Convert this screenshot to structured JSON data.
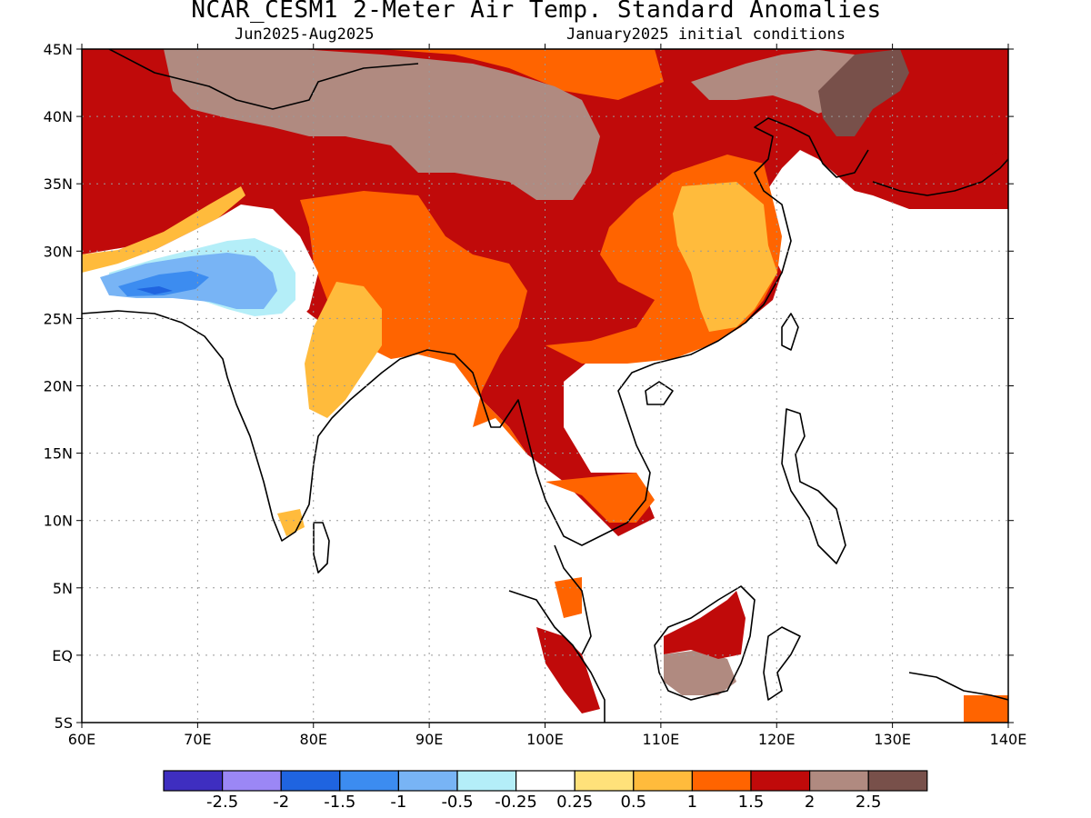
{
  "title": "NCAR_CESM1 2-Meter Air Temp. Standard Anomalies",
  "subtitle_left": "Jun2025-Aug2025",
  "subtitle_right": "January2025 initial conditions",
  "lon_ticks": [
    "60E",
    "70E",
    "80E",
    "90E",
    "100E",
    "110E",
    "120E",
    "130E",
    "140E"
  ],
  "lat_ticks": [
    "45N",
    "40N",
    "35N",
    "30N",
    "25N",
    "20N",
    "15N",
    "10N",
    "5N",
    "EQ",
    "5S"
  ],
  "colorbar": {
    "colors": [
      "#3e2ec0",
      "#9b87f5",
      "#1f64e0",
      "#3c8cf0",
      "#78b4f5",
      "#b4eef8",
      "#ffffff",
      "#ffe17a",
      "#ffbb3c",
      "#ff6400",
      "#c00a0a",
      "#b08a80",
      "#78504a"
    ],
    "labels": [
      "-2.5",
      "-2",
      "-1.5",
      "-1",
      "-0.5",
      "-0.25",
      "0.25",
      "0.5",
      "1",
      "1.5",
      "2",
      "2.5"
    ]
  },
  "map_regions": {
    "red": "#c00a0a",
    "orange": "#ff6400",
    "light_orange": "#ffbb3c",
    "yellow": "#ffe17a",
    "tan": "#b08a80",
    "dark_brown": "#78504a",
    "light_blue": "#b4eef8",
    "mid_blue": "#78b4f5",
    "blue": "#3c8cf0",
    "dark_blue": "#1f64e0"
  }
}
